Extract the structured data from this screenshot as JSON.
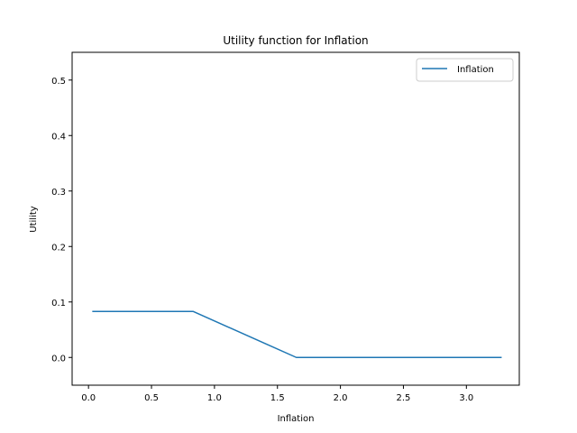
{
  "chart_data": {
    "type": "line",
    "title": "Utility function for Inflation",
    "xlabel": "Inflation",
    "ylabel": "Utility",
    "xlim": [
      -0.13,
      3.42
    ],
    "ylim": [
      -0.05,
      0.55
    ],
    "xticks": [
      0.0,
      0.5,
      1.0,
      1.5,
      2.0,
      2.5,
      3.0
    ],
    "xtick_labels": [
      "0.0",
      "0.5",
      "1.0",
      "1.5",
      "2.0",
      "2.5",
      "3.0"
    ],
    "yticks": [
      0.0,
      0.1,
      0.2,
      0.3,
      0.4,
      0.5
    ],
    "ytick_labels": [
      "0.0",
      "0.1",
      "0.2",
      "0.3",
      "0.4",
      "0.5"
    ],
    "grid": false,
    "legend_position": "top-right",
    "series": [
      {
        "name": "Inflation",
        "color": "#1f77b4",
        "x": [
          0.03,
          0.83,
          1.65,
          3.28
        ],
        "y": [
          0.083,
          0.083,
          0.0,
          0.0
        ]
      }
    ]
  }
}
